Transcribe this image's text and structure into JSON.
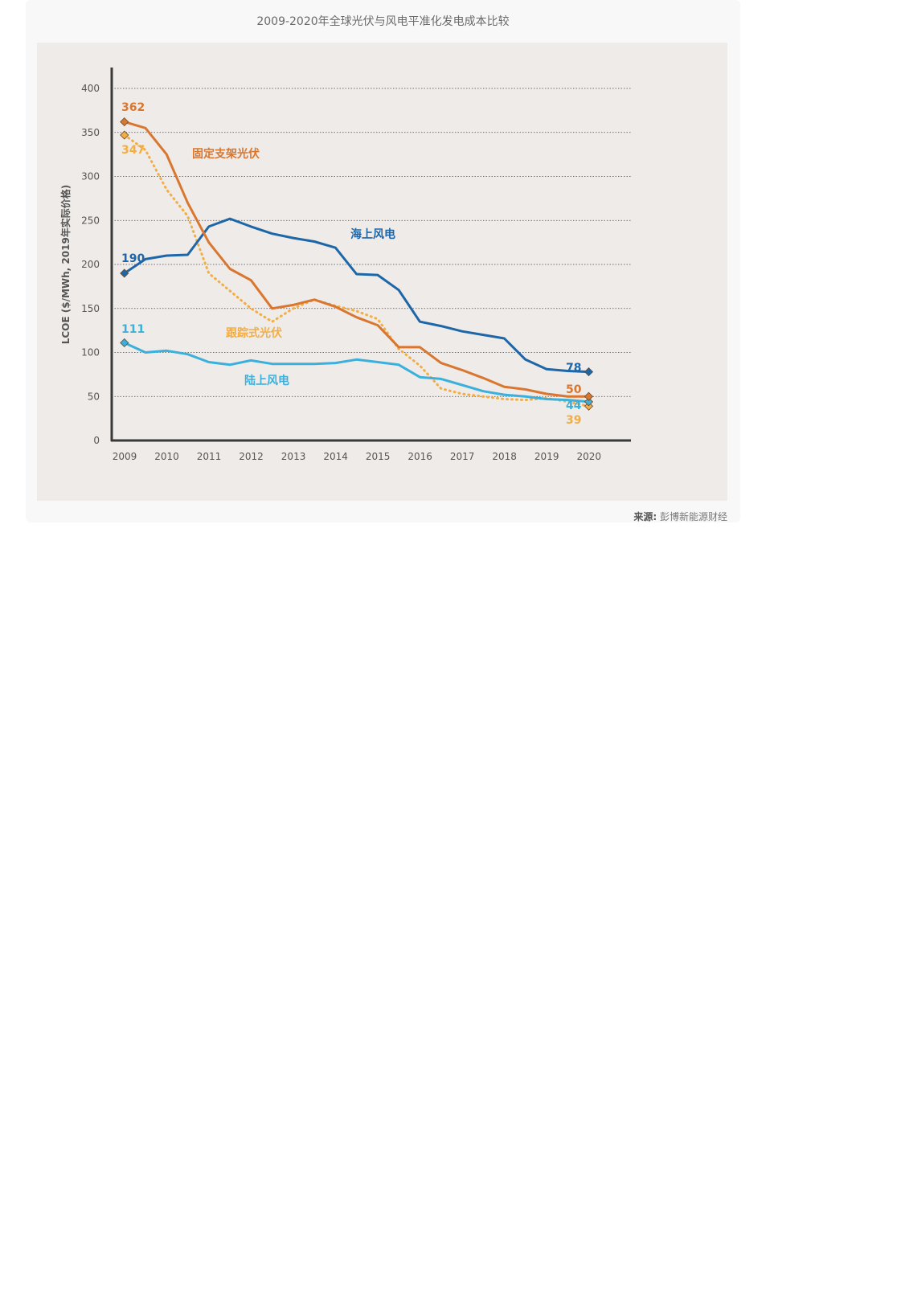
{
  "title": "2009-2020年全球光伏与风电平准化发电成本比较",
  "source_label": "来源:",
  "source_text": "彭博新能源财经",
  "chart_data": {
    "type": "line",
    "ylabel": "LCOE ($/MWh, 2019年实际价格)",
    "xlabel": "",
    "ylim": [
      0,
      400
    ],
    "yticks": [
      0,
      50,
      100,
      150,
      200,
      250,
      300,
      350,
      400
    ],
    "xticks": [
      "2009",
      "2010",
      "2011",
      "2012",
      "2013",
      "2014",
      "2015",
      "2016",
      "2017",
      "2018",
      "2019",
      "2020"
    ],
    "grid": "horizontal-dotted",
    "colors": {
      "fixed_pv": "#d9762f",
      "tracking_pv": "#f2ad45",
      "offshore": "#1d66a8",
      "onshore": "#3bb0dc"
    },
    "series": [
      {
        "key": "fixed_pv",
        "name": "固定支架光伏",
        "style": "solid",
        "x": [
          2009.3,
          2009.8,
          2010.3,
          2010.8,
          2011.3,
          2011.8,
          2012.3,
          2012.8,
          2013.3,
          2013.8,
          2014.3,
          2014.8,
          2015.3,
          2015.8,
          2016.3,
          2016.8,
          2017.3,
          2017.8,
          2018.3,
          2018.8,
          2019.3,
          2019.8,
          2020.3
        ],
        "values": [
          362,
          355,
          325,
          270,
          225,
          195,
          182,
          150,
          154,
          160,
          152,
          140,
          131,
          106,
          106,
          88,
          80,
          71,
          61,
          58,
          53,
          50,
          50
        ],
        "start_label": "362",
        "end_label": "50"
      },
      {
        "key": "tracking_pv",
        "name": "跟踪式光伏",
        "style": "dotted",
        "x": [
          2009.3,
          2009.8,
          2010.3,
          2010.8,
          2011.3,
          2011.8,
          2012.3,
          2012.8,
          2013.3,
          2013.8,
          2014.3,
          2014.8,
          2015.3,
          2015.8,
          2016.3,
          2016.8,
          2017.3,
          2017.8,
          2018.3,
          2018.8,
          2019.3,
          2019.8,
          2020.3
        ],
        "values": [
          347,
          330,
          285,
          255,
          190,
          170,
          150,
          135,
          150,
          160,
          153,
          147,
          138,
          104,
          85,
          59,
          53,
          50,
          47,
          46,
          48,
          44,
          39
        ],
        "start_label": "347",
        "end_label": "39"
      },
      {
        "key": "offshore",
        "name": "海上风电",
        "style": "solid",
        "x": [
          2009.3,
          2009.8,
          2010.3,
          2010.8,
          2011.3,
          2011.8,
          2012.3,
          2012.8,
          2013.3,
          2013.8,
          2014.3,
          2014.8,
          2015.3,
          2015.8,
          2016.3,
          2016.8,
          2017.3,
          2017.8,
          2018.3,
          2018.8,
          2019.3,
          2019.8,
          2020.3
        ],
        "values": [
          190,
          206,
          210,
          211,
          243,
          252,
          243,
          235,
          230,
          226,
          219,
          189,
          188,
          171,
          135,
          130,
          124,
          120,
          116,
          92,
          81,
          79,
          78
        ],
        "start_label": "190",
        "end_label": "78"
      },
      {
        "key": "onshore",
        "name": "陆上风电",
        "style": "solid",
        "x": [
          2009.3,
          2009.8,
          2010.3,
          2010.8,
          2011.3,
          2011.8,
          2012.3,
          2012.8,
          2013.3,
          2013.8,
          2014.3,
          2014.8,
          2015.3,
          2015.8,
          2016.3,
          2016.8,
          2017.3,
          2017.8,
          2018.3,
          2018.8,
          2019.3,
          2019.8,
          2020.3
        ],
        "values": [
          111,
          100,
          102,
          98,
          89,
          86,
          91,
          87,
          87,
          87,
          88,
          92,
          89,
          86,
          72,
          70,
          63,
          56,
          52,
          50,
          47,
          46,
          44
        ],
        "start_label": "111",
        "end_label": "44"
      }
    ]
  }
}
